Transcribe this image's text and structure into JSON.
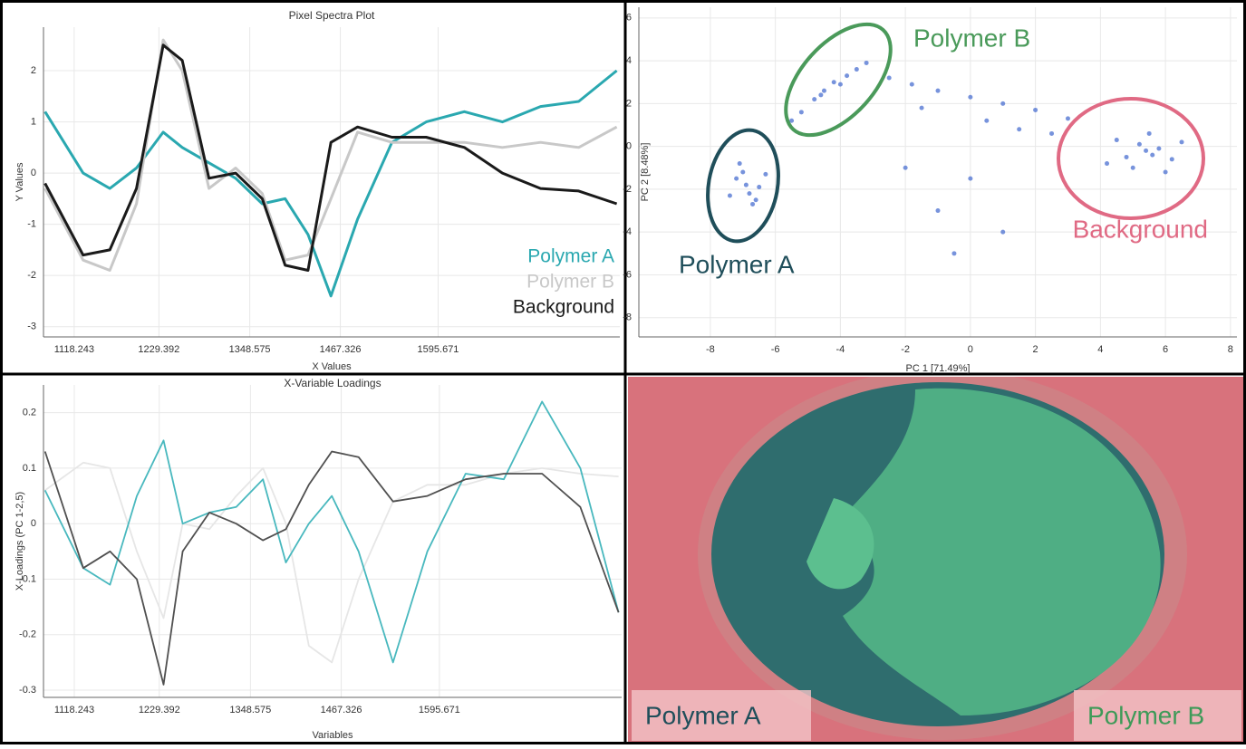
{
  "chart_data": [
    {
      "type": "line",
      "title": "Pixel Spectra Plot",
      "x_label": "X Values",
      "y_label": "Y Values",
      "x": [
        1080,
        1130,
        1165,
        1200,
        1235,
        1260,
        1295,
        1330,
        1365,
        1395,
        1425,
        1455,
        1490,
        1535,
        1580,
        1630,
        1680,
        1730,
        1780,
        1830
      ],
      "series": [
        {
          "name": "Polymer A",
          "color": "#2aa8b0",
          "values": [
            1.2,
            0.0,
            -0.3,
            0.1,
            0.8,
            0.5,
            0.2,
            -0.1,
            -0.6,
            -0.5,
            -1.2,
            -2.4,
            -0.9,
            0.6,
            1.0,
            1.2,
            1.0,
            1.3,
            1.4,
            2.0
          ]
        },
        {
          "name": "Polymer B",
          "color": "#c8c8c8",
          "values": [
            -0.3,
            -1.7,
            -1.9,
            -0.6,
            2.6,
            2.0,
            -0.3,
            0.1,
            -0.4,
            -1.7,
            -1.6,
            -0.5,
            0.8,
            0.6,
            0.6,
            0.6,
            0.5,
            0.6,
            0.5,
            0.9
          ]
        },
        {
          "name": "Background",
          "color": "#1a1a1a",
          "values": [
            -0.2,
            -1.6,
            -1.5,
            -0.3,
            2.5,
            2.2,
            -0.1,
            0.0,
            -0.5,
            -1.8,
            -1.9,
            0.6,
            0.9,
            0.7,
            0.7,
            0.5,
            0.0,
            -0.3,
            -0.35,
            -0.6
          ]
        }
      ],
      "xlim": [
        1078,
        1834
      ],
      "ylim": [
        -3.2,
        2.85
      ],
      "xticks": [
        1118.243,
        1229.392,
        1348.575,
        1467.326,
        1595.671
      ],
      "yticks": [
        -3,
        -2,
        -1,
        0,
        1,
        2
      ],
      "grid": true
    },
    {
      "type": "scatter",
      "x_label": "PC 1 [71.49%]",
      "y_label": "PC 2 [8.48%]",
      "color": "#4a6fd0",
      "x": [
        -7.2,
        -6.9,
        -6.8,
        -7.0,
        -6.5,
        -7.4,
        -6.7,
        -6.3,
        -7.1,
        -6.6,
        -4.5,
        -4.2,
        -3.8,
        -4.8,
        -5.2,
        -3.5,
        -4.0,
        -3.2,
        -5.5,
        -4.6,
        -2.5,
        -1.8,
        -1.0,
        0,
        1,
        2,
        3,
        -1.5,
        0.5,
        1.5,
        2.5,
        -2,
        0,
        -1,
        -0.5,
        1,
        5.4,
        5.6,
        5.2,
        5.8,
        4.8,
        6.2,
        4.5,
        5.0,
        6.5,
        4.2,
        5.5,
        6.0
      ],
      "values": [
        -1.5,
        -1.8,
        -2.2,
        -1.2,
        -1.9,
        -2.3,
        -2.7,
        -1.3,
        -0.8,
        -2.5,
        2.6,
        3.0,
        3.3,
        2.2,
        1.6,
        3.6,
        2.9,
        3.9,
        1.2,
        2.4,
        3.2,
        2.9,
        2.6,
        2.3,
        2.0,
        1.7,
        1.3,
        1.8,
        1.2,
        0.8,
        0.6,
        -1,
        -1.5,
        -3,
        -5,
        -4,
        -0.2,
        -0.4,
        0.1,
        -0.1,
        -0.5,
        -0.6,
        0.3,
        -1.0,
        0.2,
        -0.8,
        0.6,
        -1.2
      ],
      "xlim": [
        -10.2,
        8.2
      ],
      "ylim": [
        -8.9,
        6.5
      ],
      "xticks": [
        -8,
        -6,
        -4,
        -2,
        0,
        2,
        4,
        6,
        8
      ],
      "yticks": [
        -8,
        -6,
        -4,
        -2,
        0,
        2,
        4,
        6
      ],
      "grid": true,
      "annotations": [
        {
          "text": "Polymer A",
          "color": "#1f4e5a"
        },
        {
          "text": "Polymer B",
          "color": "#4a9a5a"
        },
        {
          "text": "Background",
          "color": "#e06a84"
        }
      ]
    },
    {
      "type": "line",
      "title": "X-Variable Loadings",
      "x_label": "Variables",
      "y_label": "X-Loadings (PC 1-2,5)",
      "x": [
        1080,
        1130,
        1165,
        1200,
        1235,
        1260,
        1295,
        1330,
        1365,
        1395,
        1425,
        1455,
        1490,
        1535,
        1580,
        1630,
        1680,
        1730,
        1780,
        1830
      ],
      "series": [
        {
          "color": "#e6e6e6",
          "values": [
            0.06,
            0.11,
            0.1,
            -0.05,
            -0.17,
            0.0,
            -0.01,
            0.05,
            0.1,
            0.0,
            -0.22,
            -0.25,
            -0.1,
            0.04,
            0.07,
            0.07,
            0.09,
            0.1,
            0.09,
            0.085
          ]
        },
        {
          "color": "#48b8be",
          "values": [
            0.06,
            -0.08,
            -0.11,
            0.05,
            0.15,
            0.0,
            0.02,
            0.03,
            0.08,
            -0.07,
            0.0,
            0.05,
            -0.05,
            -0.25,
            -0.05,
            0.09,
            0.08,
            0.22,
            0.1,
            -0.16
          ]
        },
        {
          "color": "#505050",
          "values": [
            0.13,
            -0.08,
            -0.05,
            -0.1,
            -0.29,
            -0.05,
            0.02,
            0.0,
            -0.03,
            -0.01,
            0.07,
            0.13,
            0.12,
            0.04,
            0.05,
            0.08,
            0.09,
            0.09,
            0.03,
            -0.16
          ]
        }
      ],
      "xlim": [
        1078,
        1834
      ],
      "ylim": [
        -0.313,
        0.25
      ],
      "xticks": [
        1118.243,
        1229.392,
        1348.575,
        1467.326,
        1595.671
      ],
      "yticks": [
        -0.3,
        -0.2,
        -0.1,
        0,
        0.1,
        0.2
      ],
      "grid": true
    }
  ],
  "image": {
    "labels": [
      "Polymer A",
      "Polymer B"
    ]
  }
}
